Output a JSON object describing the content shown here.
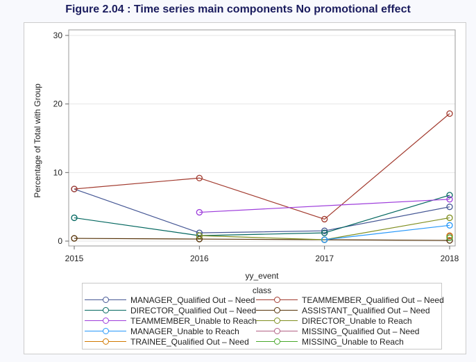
{
  "chart_data": {
    "type": "line",
    "title": "Figure 2.04 : Time series main components No promotional effect",
    "xlabel": "yy_event",
    "ylabel": "Percentage of Total with Group",
    "x": [
      2015,
      2016,
      2017,
      2018
    ],
    "xticks": [
      "2015",
      "2016",
      "2017",
      "2018"
    ],
    "ylim": [
      0,
      30
    ],
    "yticks": [
      "0",
      "10",
      "20",
      "30"
    ],
    "grid": true,
    "legend": {
      "title": "class",
      "placement": "bottom"
    },
    "series": [
      {
        "name": "MANAGER_Qualified Out – Need",
        "color": "#445694",
        "values": [
          7.6,
          1.2,
          1.5,
          5.0
        ]
      },
      {
        "name": "TEAMMEMBER_Qualified Out – Need",
        "color": "#A23A2E",
        "values": [
          7.6,
          9.2,
          3.2,
          18.6
        ]
      },
      {
        "name": "DIRECTOR_Qualified Out – Need",
        "color": "#01665E",
        "values": [
          3.4,
          0.8,
          1.2,
          6.7
        ]
      },
      {
        "name": "ASSISTANT_Qualified Out – Need",
        "color": "#543005",
        "values": [
          0.4,
          0.3,
          0.2,
          0.1
        ]
      },
      {
        "name": "TEAMMEMBER_Unable to Reach",
        "color": "#9D3CDB",
        "values": [
          null,
          4.2,
          null,
          6.1
        ]
      },
      {
        "name": "DIRECTOR_Unable to Reach",
        "color": "#7F8E1F",
        "values": [
          null,
          0.8,
          0.2,
          3.4
        ]
      },
      {
        "name": "MANAGER_Unable to Reach",
        "color": "#2597FA",
        "values": [
          null,
          null,
          0.2,
          2.3
        ]
      },
      {
        "name": "MISSING_Qualified Out – Need",
        "color": "#B26084",
        "values": [
          null,
          null,
          null,
          0.7
        ]
      },
      {
        "name": "TRAINEE_Qualified Out – Need",
        "color": "#D17800",
        "values": [
          null,
          null,
          null,
          0.8
        ]
      },
      {
        "name": "MISSING_Unable to Reach",
        "color": "#47A82A",
        "values": [
          null,
          null,
          null,
          0.5
        ]
      }
    ]
  }
}
